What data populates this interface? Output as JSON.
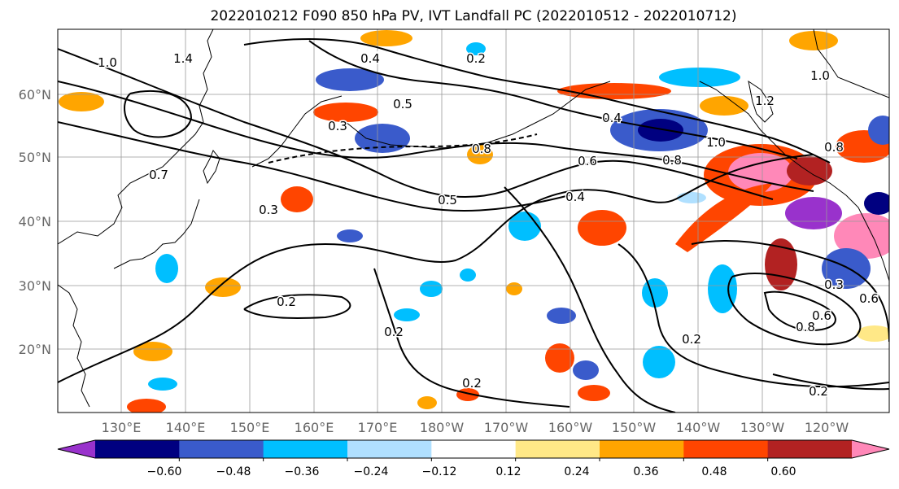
{
  "title": "2022010212 F090 850 hPa PV, IVT Landfall PC (2022010512 - 2022010712)",
  "lat_labels": [
    "60°N",
    "50°N",
    "40°N",
    "30°N",
    "20°N"
  ],
  "lon_labels": [
    "130°E",
    "140°E",
    "150°E",
    "160°E",
    "170°E",
    "180°W",
    "170°W",
    "160°W",
    "150°W",
    "140°W",
    "130°W",
    "120°W"
  ],
  "colorbar": {
    "tick_labels": [
      "−0.60",
      "−0.48",
      "−0.36",
      "−0.24",
      "−0.12",
      "0.12",
      "0.24",
      "0.36",
      "0.48",
      "0.60"
    ],
    "colors": [
      "#9932CC",
      "#000080",
      "#3A5BCB",
      "#00BFFF",
      "#B0E0FF",
      "#FFFFFF",
      "#FFE887",
      "#FFA500",
      "#FF4500",
      "#B22222",
      "#FF88B8"
    ]
  },
  "contour_labels": [
    "0.4",
    "0.5",
    "0.3",
    "0.5",
    "0.6",
    "0.4",
    "0.8",
    "1.0",
    "0.3",
    "0.2",
    "0.2",
    "0.2",
    "0.2",
    "0.2",
    "0.6",
    "0.8",
    "0.6",
    "0.3",
    "0.8",
    "1.0",
    "1.0",
    "1.4",
    "1.2",
    "0.7",
    "0.2",
    "0.4",
    "0.8"
  ]
}
